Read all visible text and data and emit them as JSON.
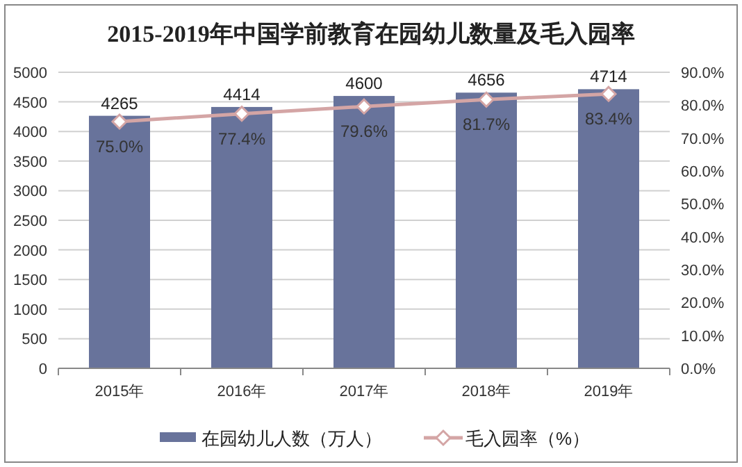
{
  "chart_data": {
    "type": "bar",
    "title": "2015-2019年中国学前教育在园幼儿数量及毛入园率",
    "categories": [
      "2015年",
      "2016年",
      "2017年",
      "2018年",
      "2019年"
    ],
    "series": [
      {
        "name": "在园幼儿人数（万人）",
        "color": "#68739b",
        "values": [
          4265,
          4414,
          4600,
          4656,
          4714
        ],
        "value_labels": [
          "4265",
          "4414",
          "4600",
          "4656",
          "4714"
        ]
      },
      {
        "name": "毛入园率（%）",
        "type": "line",
        "axis": "y2",
        "color": "#d4a5a5",
        "marker": "diamond",
        "values": [
          75.0,
          77.4,
          79.6,
          81.7,
          83.4
        ],
        "value_labels": [
          "75.0%",
          "77.4%",
          "79.6%",
          "81.7%",
          "83.4%"
        ]
      }
    ],
    "ylim": [
      0,
      5000
    ],
    "yticks": [
      0,
      500,
      1000,
      1500,
      2000,
      2500,
      3000,
      3500,
      4000,
      4500,
      5000
    ],
    "y2lim": [
      0,
      90
    ],
    "y2ticks": [
      {
        "value": 0,
        "label": "0.0%"
      },
      {
        "value": 10,
        "label": "10.0%"
      },
      {
        "value": 20,
        "label": "20.0%"
      },
      {
        "value": 30,
        "label": "30.0%"
      },
      {
        "value": 40,
        "label": "40.0%"
      },
      {
        "value": 50,
        "label": "50.0%"
      },
      {
        "value": 60,
        "label": "60.0%"
      },
      {
        "value": 70,
        "label": "70.0%"
      },
      {
        "value": 80,
        "label": "80.0%"
      },
      {
        "value": 90,
        "label": "90.0%"
      }
    ],
    "grid": "y",
    "legend": "bottom"
  }
}
